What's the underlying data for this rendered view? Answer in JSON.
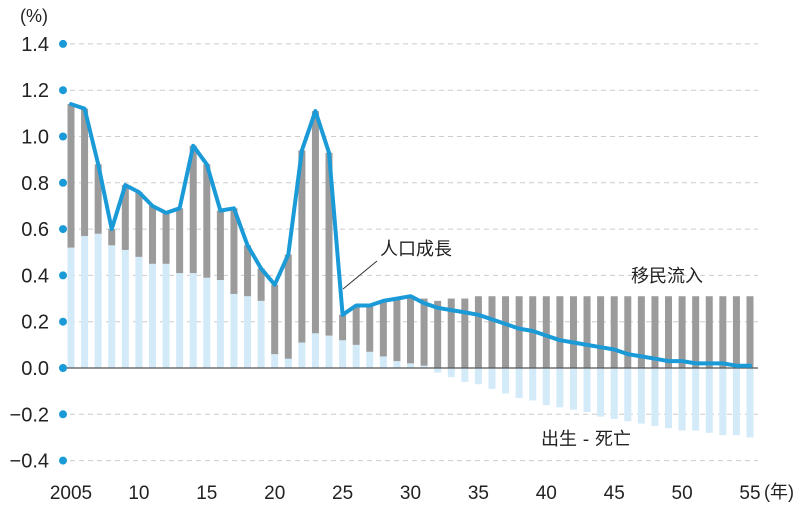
{
  "chart_data": {
    "type": "bar",
    "subtype": "bar+line (stacked components with total line)",
    "title": "",
    "ylabel": "(%)",
    "xlabel": "(年)",
    "ylim": [
      -0.4,
      1.4
    ],
    "yticks": [
      "1.4",
      "1.2",
      "1.0",
      "0.8",
      "0.6",
      "0.4",
      "0.2",
      "0.0",
      "−0.2",
      "−0.4"
    ],
    "ytick_values": [
      1.4,
      1.2,
      1.0,
      0.8,
      0.6,
      0.4,
      0.2,
      0.0,
      -0.2,
      -0.4
    ],
    "xticks": [
      "2005",
      "10",
      "15",
      "20",
      "25",
      "30",
      "35",
      "40",
      "45",
      "50",
      "55"
    ],
    "xtick_years": [
      2005,
      2010,
      2015,
      2020,
      2025,
      2030,
      2035,
      2040,
      2045,
      2050,
      2055
    ],
    "grid": "horizontal dashed",
    "x": [
      2005,
      2006,
      2007,
      2008,
      2009,
      2010,
      2011,
      2012,
      2013,
      2014,
      2015,
      2016,
      2017,
      2018,
      2019,
      2020,
      2021,
      2022,
      2023,
      2024,
      2025,
      2026,
      2027,
      2028,
      2029,
      2030,
      2031,
      2032,
      2033,
      2034,
      2035,
      2036,
      2037,
      2038,
      2039,
      2040,
      2041,
      2042,
      2043,
      2044,
      2045,
      2046,
      2047,
      2048,
      2049,
      2050,
      2051,
      2052,
      2053,
      2054,
      2055
    ],
    "series": [
      {
        "name": "出生 - 死亡",
        "kind": "bar",
        "color": "#d3eaf8",
        "values": [
          0.52,
          0.57,
          0.58,
          0.53,
          0.51,
          0.48,
          0.45,
          0.45,
          0.41,
          0.41,
          0.39,
          0.38,
          0.32,
          0.31,
          0.29,
          0.06,
          0.04,
          0.11,
          0.15,
          0.14,
          0.12,
          0.1,
          0.07,
          0.05,
          0.03,
          0.02,
          0.01,
          -0.02,
          -0.04,
          -0.06,
          -0.07,
          -0.09,
          -0.11,
          -0.13,
          -0.14,
          -0.16,
          -0.17,
          -0.18,
          -0.19,
          -0.21,
          -0.22,
          -0.23,
          -0.24,
          -0.25,
          -0.26,
          -0.27,
          -0.27,
          -0.28,
          -0.29,
          -0.29,
          -0.3
        ]
      },
      {
        "name": "移民流入",
        "kind": "bar",
        "color": "#9b9b9b",
        "values": [
          0.62,
          0.55,
          0.3,
          0.07,
          0.28,
          0.28,
          0.25,
          0.22,
          0.28,
          0.55,
          0.49,
          0.3,
          0.37,
          0.22,
          0.14,
          0.3,
          0.45,
          0.83,
          0.96,
          0.79,
          0.11,
          0.17,
          0.2,
          0.24,
          0.27,
          0.29,
          0.29,
          0.29,
          0.3,
          0.3,
          0.31,
          0.31,
          0.31,
          0.31,
          0.31,
          0.31,
          0.31,
          0.31,
          0.31,
          0.31,
          0.31,
          0.31,
          0.31,
          0.31,
          0.31,
          0.31,
          0.31,
          0.31,
          0.31,
          0.31,
          0.31
        ]
      },
      {
        "name": "人口成長",
        "kind": "line",
        "color": "#1a9ad7",
        "values": [
          1.14,
          1.12,
          0.88,
          0.6,
          0.79,
          0.76,
          0.7,
          0.67,
          0.69,
          0.96,
          0.88,
          0.68,
          0.69,
          0.53,
          0.43,
          0.36,
          0.49,
          0.94,
          1.11,
          0.93,
          0.23,
          0.27,
          0.27,
          0.29,
          0.3,
          0.31,
          0.28,
          0.26,
          0.25,
          0.24,
          0.23,
          0.21,
          0.19,
          0.17,
          0.16,
          0.14,
          0.12,
          0.11,
          0.1,
          0.09,
          0.08,
          0.06,
          0.05,
          0.04,
          0.03,
          0.03,
          0.02,
          0.02,
          0.02,
          0.01,
          0.01
        ]
      }
    ],
    "annotations": [
      {
        "text": "人口成長",
        "target": "line"
      },
      {
        "text": "移民流入",
        "target": "grey bars"
      },
      {
        "text": "出生 - 死亡",
        "target": "light-blue bars"
      }
    ],
    "legend": "inline annotations"
  },
  "labels": {
    "y_unit": "(%)",
    "x_unit": "(年)",
    "anno_growth": "人口成長",
    "anno_migration": "移民流入",
    "anno_natural": "出生 - 死亡"
  },
  "colors": {
    "line": "#1a9ad7",
    "migration": "#9b9b9b",
    "natural": "#d3eaf8",
    "tick_dot": "#1a9ad7",
    "grid": "#cccccc",
    "zero": "#555555"
  }
}
